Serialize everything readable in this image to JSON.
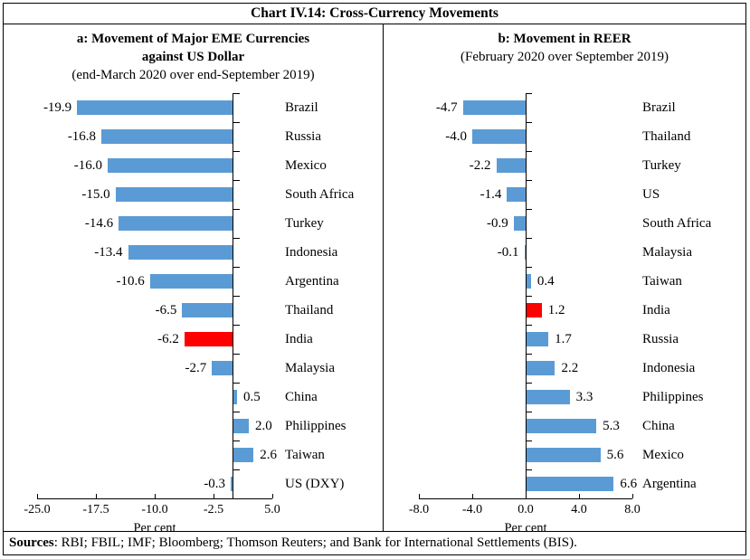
{
  "title": "Chart IV.14: Cross-Currency Movements",
  "footer": {
    "sources_label": "Sources",
    "sources_text": ": RBI; FBIL; IMF; Bloomberg; Thomson Reuters; and Bank for International Settlements (BIS)."
  },
  "colors": {
    "bar_blue": "#5B9BD5",
    "bar_highlight_red": "#FF0000",
    "axis_black": "#000000"
  },
  "chart_data": [
    {
      "id": "a",
      "type": "bar",
      "orientation": "horizontal",
      "title_line1": "a: Movement of Major EME Currencies",
      "title_line2": "against US Dollar",
      "subtitle": "(end-March 2020 over end-September 2019)",
      "xlabel": "Per cent",
      "xlim": [
        -25.0,
        5.0
      ],
      "grid": false,
      "legend": false,
      "xticks": [
        {
          "value": -25.0,
          "label": "-25.0"
        },
        {
          "value": -17.5,
          "label": "-17.5"
        },
        {
          "value": -10.0,
          "label": "-10.0"
        },
        {
          "value": -2.5,
          "label": "-2.5"
        },
        {
          "value": 5.0,
          "label": "5.0"
        }
      ],
      "bar_color": "#5B9BD5",
      "highlight": {
        "category": "India",
        "color": "#FF0000"
      },
      "categories": [
        "Brazil",
        "Russia",
        "Mexico",
        "South Africa",
        "Turkey",
        "Indonesia",
        "Argentina",
        "Thailand",
        "India",
        "Malaysia",
        "China",
        "Philippines",
        "Taiwan",
        "US (DXY)"
      ],
      "values": [
        -19.9,
        -16.8,
        -16.0,
        -15.0,
        -14.6,
        -13.4,
        -10.6,
        -6.5,
        -6.2,
        -2.7,
        0.5,
        2.0,
        2.6,
        -0.3
      ],
      "value_labels": [
        "-19.9",
        "-16.8",
        "-16.0",
        "-15.0",
        "-14.6",
        "-13.4",
        "-10.6",
        "-6.5",
        "-6.2",
        "-2.7",
        "0.5",
        "2.0",
        "2.6",
        "-0.3"
      ]
    },
    {
      "id": "b",
      "type": "bar",
      "orientation": "horizontal",
      "title_line1": "b: Movement in REER",
      "title_line2": "",
      "subtitle": "(February 2020 over September 2019)",
      "xlabel": "Per cent",
      "xlim": [
        -8.0,
        8.0
      ],
      "grid": false,
      "legend": false,
      "xticks": [
        {
          "value": -8.0,
          "label": "-8.0"
        },
        {
          "value": -4.0,
          "label": "-4.0"
        },
        {
          "value": 0.0,
          "label": "0.0"
        },
        {
          "value": 4.0,
          "label": "4.0"
        },
        {
          "value": 8.0,
          "label": "8.0"
        }
      ],
      "bar_color": "#5B9BD5",
      "highlight": {
        "category": "India",
        "color": "#FF0000"
      },
      "categories": [
        "Brazil",
        "Thailand",
        "Turkey",
        "US",
        "South Africa",
        "Malaysia",
        "Taiwan",
        "India",
        "Russia",
        "Indonesia",
        "Philippines",
        "China",
        "Mexico",
        "Argentina"
      ],
      "values": [
        -4.7,
        -4.0,
        -2.2,
        -1.4,
        -0.9,
        -0.1,
        0.4,
        1.2,
        1.7,
        2.2,
        3.3,
        5.3,
        5.6,
        6.6
      ],
      "value_labels": [
        "-4.7",
        "-4.0",
        "-2.2",
        "-1.4",
        "-0.9",
        "-0.1",
        "0.4",
        "1.2",
        "1.7",
        "2.2",
        "3.3",
        "5.3",
        "5.6",
        "6.6"
      ]
    }
  ]
}
